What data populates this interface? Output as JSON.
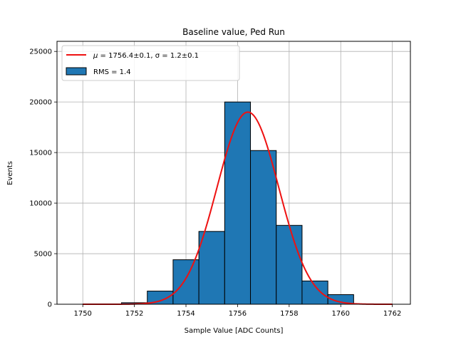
{
  "chart_data": {
    "type": "bar",
    "title": "Baseline value, Ped Run",
    "xlabel": "Sample Value [ADC Counts]",
    "ylabel": "Events",
    "xlim": [
      1749,
      1762.7
    ],
    "ylim": [
      0,
      26000
    ],
    "grid": true,
    "x_ticks": [
      1750,
      1752,
      1754,
      1756,
      1758,
      1760,
      1762
    ],
    "y_ticks": [
      0,
      5000,
      10000,
      15000,
      20000,
      25000
    ],
    "x_tick_labels": [
      "1750",
      "1752",
      "1754",
      "1756",
      "1758",
      "1760",
      "1762"
    ],
    "y_tick_labels": [
      "0",
      "5000",
      "10000",
      "15000",
      "20000",
      "25000"
    ],
    "bins": [
      {
        "x0": 1751.5,
        "x1": 1752.5,
        "value": 150
      },
      {
        "x0": 1752.5,
        "x1": 1753.5,
        "value": 1300
      },
      {
        "x0": 1753.5,
        "x1": 1754.5,
        "value": 4400
      },
      {
        "x0": 1754.5,
        "x1": 1755.5,
        "value": 7200
      },
      {
        "x0": 1755.5,
        "x1": 1756.5,
        "value": 20000
      },
      {
        "x0": 1756.5,
        "x1": 1757.5,
        "value": 15200
      },
      {
        "x0": 1757.5,
        "x1": 1758.5,
        "value": 7800
      },
      {
        "x0": 1758.5,
        "x1": 1759.5,
        "value": 2300
      },
      {
        "x0": 1759.5,
        "x1": 1760.5,
        "value": 950
      }
    ],
    "fit": {
      "type": "gaussian",
      "mu": 1756.4,
      "sigma": 1.2,
      "amplitude": 19000,
      "x_range": [
        1750,
        1762
      ]
    },
    "legend": {
      "placement": "upper-left",
      "fit_label_prefix": "μ = ",
      "fit_label_mu": "1756.4±0.1",
      "fit_label_mid": ", σ = ",
      "fit_label_sigma": "1.2±0.1",
      "hist_label": "RMS = 1.4"
    },
    "colors": {
      "bar_fill": "#1f77b4",
      "bar_edge": "#000000",
      "fit_line": "#ee1111",
      "grid": "#b0b0b0"
    }
  }
}
